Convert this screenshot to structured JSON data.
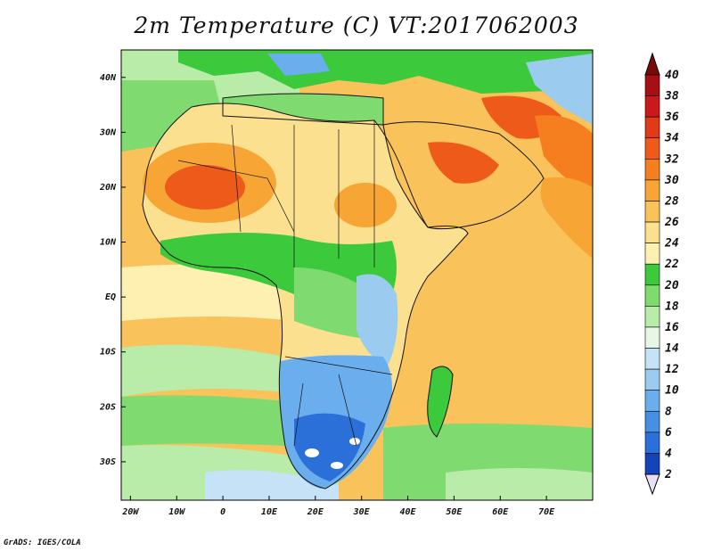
{
  "title": "2m Temperature (C) VT:2017062003",
  "credit": "GrADS: IGES/COLA",
  "map": {
    "lat_labels": [
      "40N",
      "30N",
      "20N",
      "10N",
      "EQ",
      "10S",
      "20S",
      "30S"
    ],
    "lon_labels": [
      "20W",
      "10W",
      "0",
      "10E",
      "20E",
      "30E",
      "40E",
      "50E",
      "60E",
      "70E"
    ],
    "lat_values": [
      40,
      30,
      20,
      10,
      0,
      -10,
      -20,
      -30
    ],
    "lon_values": [
      -20,
      -10,
      0,
      10,
      20,
      30,
      40,
      50,
      60,
      70
    ],
    "lon_range": [
      -22,
      80
    ],
    "lat_range": [
      -37,
      45
    ]
  },
  "colorbar": {
    "levels": [
      "40",
      "38",
      "36",
      "34",
      "32",
      "30",
      "28",
      "26",
      "24",
      "22",
      "20",
      "18",
      "16",
      "14",
      "12",
      "10",
      "8",
      "6",
      "4",
      "2"
    ],
    "colors": [
      "#a50f15",
      "#cb181d",
      "#e03a18",
      "#ee5a1a",
      "#f57f1e",
      "#f7a535",
      "#f9c25a",
      "#fbe08f",
      "#fdf0b0",
      "#3cc93c",
      "#7fdb70",
      "#b9eca8",
      "#e6f7e6",
      "#c6e2f7",
      "#9ccbf0",
      "#6baeed",
      "#4690e3",
      "#2a70d8",
      "#1444b8",
      "#0a1e80"
    ],
    "top_color": "#7a0a0a",
    "bottom_color": "#e8e0f5"
  }
}
